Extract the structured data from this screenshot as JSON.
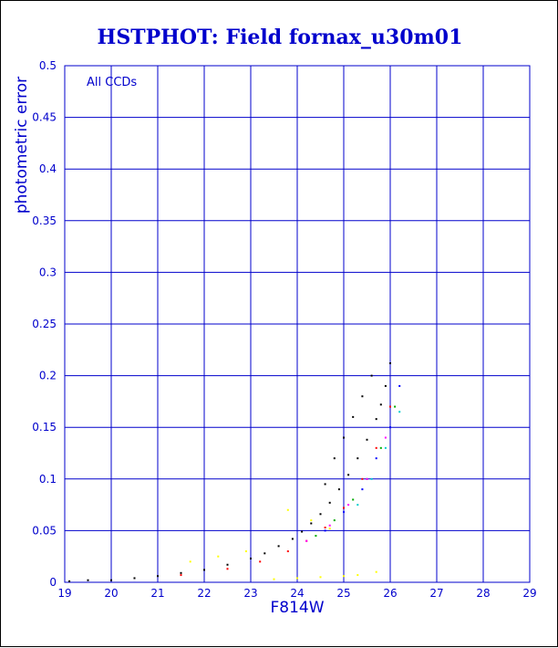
{
  "chart_data": {
    "type": "scatter",
    "title": "HSTPHOT: Field fornax_u30m01",
    "xlabel": "F814W",
    "ylabel": "photometric error",
    "annotation": "All CCDs",
    "xlim": [
      19,
      29
    ],
    "ylim": [
      0,
      0.5
    ],
    "x_ticks": [
      "19",
      "20",
      "21",
      "22",
      "23",
      "24",
      "25",
      "26",
      "27",
      "28",
      "29"
    ],
    "y_ticks": [
      "0",
      "0.05",
      "0.1",
      "0.15",
      "0.2",
      "0.25",
      "0.3",
      "0.35",
      "0.4",
      "0.45",
      "0.5"
    ],
    "grid": true,
    "series": [
      {
        "color": "#000000",
        "x": [
          19.1,
          19.5,
          20.0,
          20.5,
          21.0,
          21.5,
          22.0,
          22.5,
          23.0,
          23.3,
          23.6,
          23.9,
          24.1,
          24.3,
          24.5,
          24.7,
          24.9,
          25.1,
          25.3,
          25.5,
          25.7,
          25.8,
          25.9,
          26.0,
          24.6,
          24.8,
          25.0,
          25.2,
          25.4,
          25.6
        ],
        "y": [
          0.001,
          0.002,
          0.002,
          0.004,
          0.006,
          0.009,
          0.012,
          0.017,
          0.023,
          0.028,
          0.035,
          0.042,
          0.049,
          0.057,
          0.066,
          0.077,
          0.09,
          0.104,
          0.12,
          0.138,
          0.158,
          0.172,
          0.19,
          0.212,
          0.095,
          0.12,
          0.14,
          0.16,
          0.18,
          0.2
        ]
      },
      {
        "color": "#ff0000",
        "x": [
          21.5,
          22.5,
          23.2,
          23.8,
          24.2,
          24.6,
          25.0,
          25.4,
          25.7,
          26.0
        ],
        "y": [
          0.007,
          0.013,
          0.02,
          0.03,
          0.04,
          0.053,
          0.072,
          0.1,
          0.13,
          0.17
        ]
      },
      {
        "color": "#00aa00",
        "x": [
          24.4,
          24.8,
          25.2,
          25.5,
          25.8,
          26.1
        ],
        "y": [
          0.045,
          0.06,
          0.08,
          0.1,
          0.13,
          0.17
        ]
      },
      {
        "color": "#0000ff",
        "x": [
          24.6,
          25.0,
          25.4,
          25.7,
          26.0,
          26.2
        ],
        "y": [
          0.05,
          0.068,
          0.09,
          0.12,
          0.15,
          0.19
        ]
      },
      {
        "color": "#ff00ff",
        "x": [
          24.2,
          24.7,
          25.1,
          25.5,
          25.9
        ],
        "y": [
          0.04,
          0.055,
          0.075,
          0.1,
          0.14
        ]
      },
      {
        "color": "#00cccc",
        "x": [
          25.3,
          25.6,
          25.9,
          26.2
        ],
        "y": [
          0.075,
          0.1,
          0.13,
          0.165
        ]
      },
      {
        "color": "#ffff00",
        "x": [
          21.7,
          22.3,
          22.9,
          23.5,
          24.0,
          24.5,
          25.0,
          25.3,
          25.7,
          24.7,
          24.3,
          23.8
        ],
        "y": [
          0.02,
          0.025,
          0.03,
          0.003,
          0.004,
          0.005,
          0.006,
          0.007,
          0.01,
          0.052,
          0.06,
          0.07
        ]
      }
    ]
  }
}
